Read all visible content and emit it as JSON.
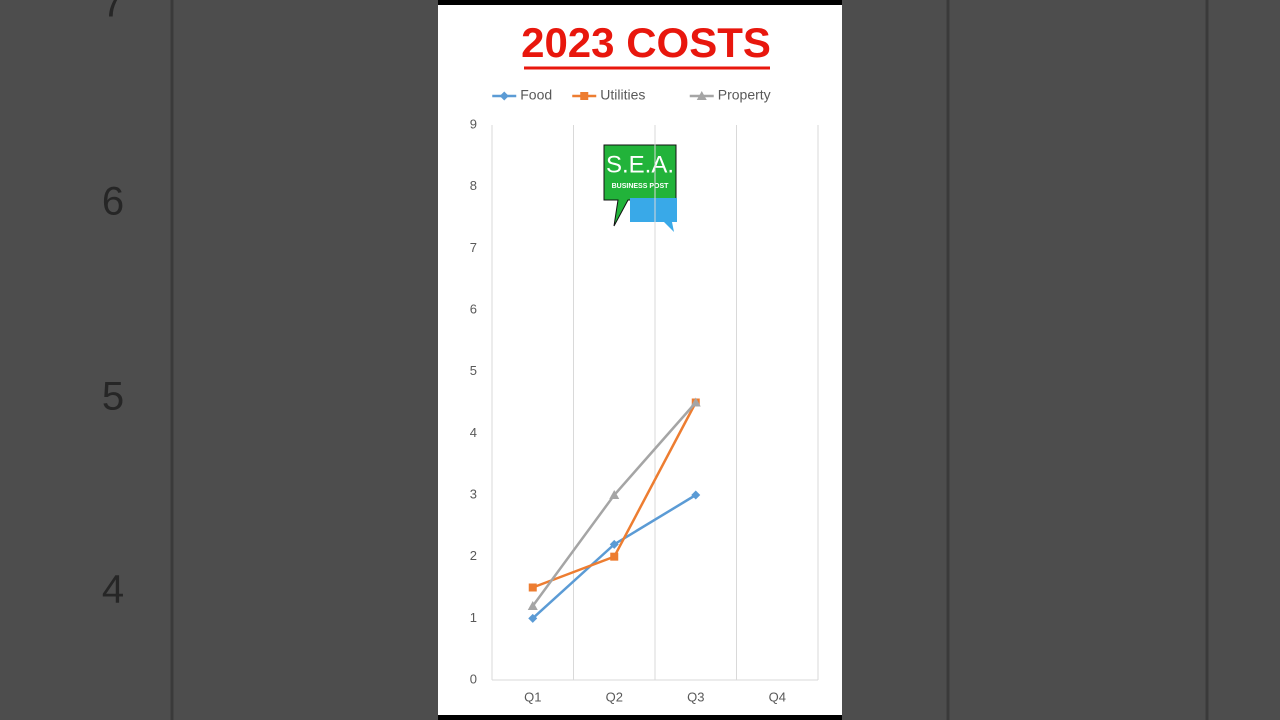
{
  "background": {
    "row_numbers": [
      "7",
      "6",
      "5",
      "4"
    ]
  },
  "logo": {
    "name": "S.E.A.",
    "subtitle": "BUSINESS POST"
  },
  "chart_data": {
    "type": "line",
    "title": "2023 COSTS",
    "categories": [
      "Q1",
      "Q2",
      "Q3",
      "Q4"
    ],
    "series": [
      {
        "name": "Food",
        "color": "#5b9bd5",
        "marker": "diamond",
        "values": [
          1,
          2.2,
          3,
          null
        ]
      },
      {
        "name": "Utilities",
        "color": "#ed7d31",
        "marker": "square",
        "values": [
          1.5,
          2,
          4.5,
          null
        ]
      },
      {
        "name": "Property",
        "color": "#a5a5a5",
        "marker": "triangle",
        "values": [
          1.2,
          3,
          4.5,
          null
        ]
      }
    ],
    "ylim": [
      0,
      9
    ],
    "yticks": [
      0,
      1,
      2,
      3,
      4,
      5,
      6,
      7,
      8,
      9
    ],
    "grid": "x",
    "legend": "top"
  }
}
